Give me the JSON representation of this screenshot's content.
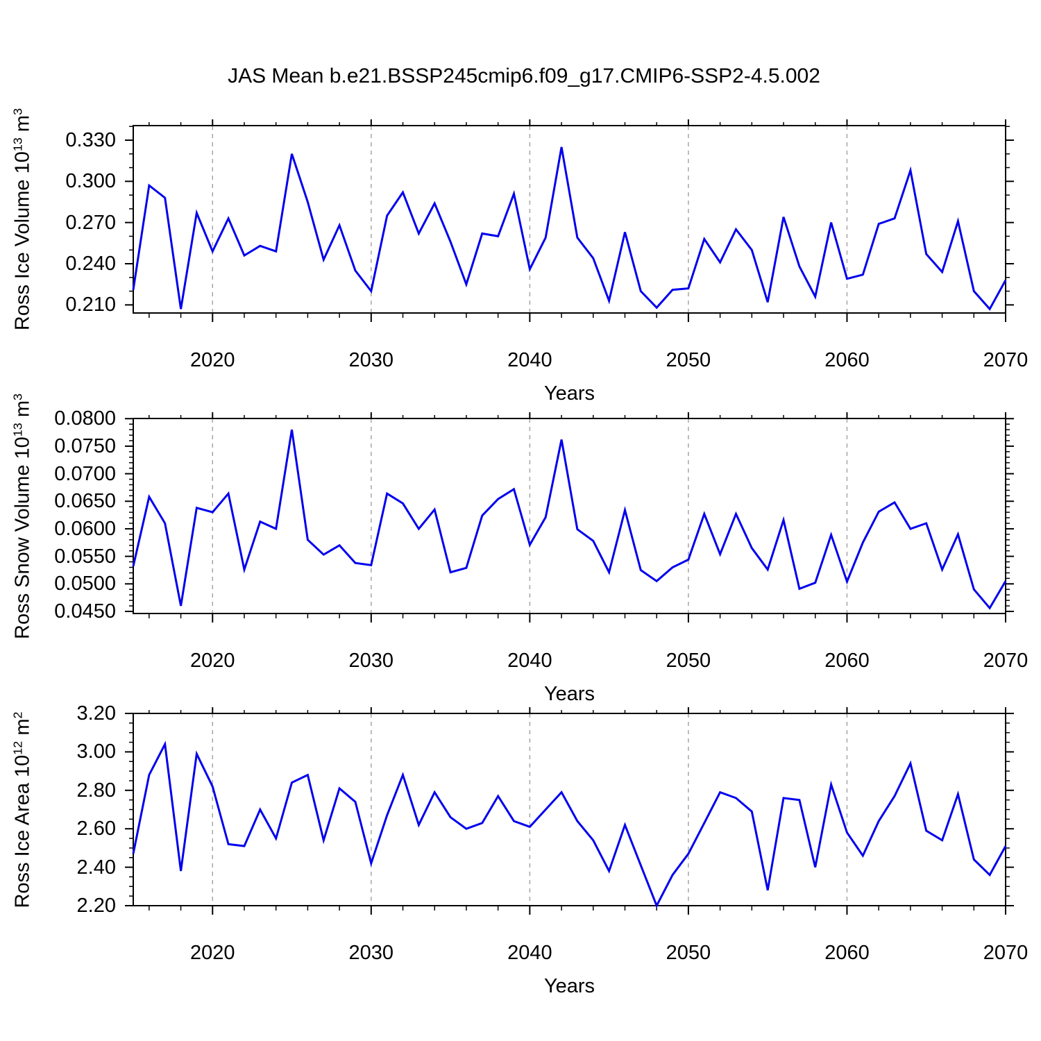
{
  "title": "JAS Mean b.e21.BSSP245cmip6.f09_g17.CMIP6-SSP2-4.5.002",
  "colors": {
    "line": "#0000ee",
    "frame": "#000000",
    "grid": "#a6a6a6",
    "background": "#ffffff"
  },
  "chart_data": [
    {
      "type": "line",
      "panel": 1,
      "ylabel_plain": "Ross Ice Volume 10^13 m^3",
      "ylabel_parts": {
        "pre": "Ross Ice Volume 10",
        "sup": "13",
        "mid": " m",
        "sup2": "3"
      },
      "xlabel": "Years",
      "x0": 2015,
      "x1": 2070,
      "x_step": 1,
      "values": [
        0.221,
        0.297,
        0.288,
        0.207,
        0.277,
        0.249,
        0.273,
        0.246,
        0.253,
        0.249,
        0.32,
        0.285,
        0.243,
        0.268,
        0.235,
        0.22,
        0.275,
        0.292,
        0.262,
        0.284,
        0.256,
        0.225,
        0.262,
        0.26,
        0.291,
        0.236,
        0.259,
        0.325,
        0.259,
        0.244,
        0.213,
        0.263,
        0.22,
        0.208,
        0.221,
        0.222,
        0.258,
        0.241,
        0.265,
        0.25,
        0.212,
        0.274,
        0.238,
        0.216,
        0.27,
        0.229,
        0.232,
        0.269,
        0.273,
        0.308,
        0.247,
        0.234,
        0.271,
        0.22,
        0.207,
        0.228
      ],
      "ylim": [
        0.2041,
        0.3406
      ],
      "ytick_values": [
        0.33,
        0.3,
        0.27,
        0.24,
        0.21
      ],
      "ytick_labels": [
        "0.330",
        "0.300",
        "0.270",
        "0.240",
        "0.210"
      ],
      "yminor_step": 0.01,
      "xtick_values": [
        2020,
        2030,
        2040,
        2050,
        2060,
        2070
      ],
      "xtick_labels": [
        "2020",
        "2030",
        "2040",
        "2050",
        "2060",
        "2070"
      ],
      "xminor_step": 2,
      "grid_years": [
        2020,
        2030,
        2040,
        2050,
        2060
      ]
    },
    {
      "type": "line",
      "panel": 2,
      "ylabel_plain": "Ross Snow Volume 10^13 m^3",
      "ylabel_parts": {
        "pre": "Ross Snow Volume 10",
        "sup": "13",
        "mid": " m",
        "sup2": "3"
      },
      "xlabel": "Years",
      "x0": 2015,
      "x1": 2070,
      "x_step": 1,
      "values": [
        0.0532,
        0.0658,
        0.061,
        0.046,
        0.0638,
        0.063,
        0.0664,
        0.0526,
        0.0613,
        0.06,
        0.078,
        0.058,
        0.0553,
        0.057,
        0.0538,
        0.0534,
        0.0664,
        0.0646,
        0.06,
        0.0635,
        0.0521,
        0.0529,
        0.0624,
        0.0654,
        0.0672,
        0.0571,
        0.0621,
        0.0762,
        0.0599,
        0.0578,
        0.0521,
        0.0634,
        0.0525,
        0.0505,
        0.053,
        0.0544,
        0.0627,
        0.0554,
        0.0627,
        0.0565,
        0.0526,
        0.0616,
        0.0491,
        0.0502,
        0.0589,
        0.0504,
        0.0575,
        0.0631,
        0.0648,
        0.06,
        0.061,
        0.0526,
        0.059,
        0.049,
        0.0456,
        0.0505
      ],
      "ylim": [
        0.04462,
        0.08003
      ],
      "ytick_values": [
        0.08,
        0.075,
        0.07,
        0.065,
        0.06,
        0.055,
        0.05,
        0.045
      ],
      "ytick_labels": [
        "0.0800",
        "0.0750",
        "0.0700",
        "0.0650",
        "0.0600",
        "0.0550",
        "0.0500",
        "0.0450"
      ],
      "yminor_step": 0.001,
      "xtick_values": [
        2020,
        2030,
        2040,
        2050,
        2060,
        2070
      ],
      "xtick_labels": [
        "2020",
        "2030",
        "2040",
        "2050",
        "2060",
        "2070"
      ],
      "xminor_step": 2,
      "grid_years": [
        2020,
        2030,
        2040,
        2050,
        2060
      ]
    },
    {
      "type": "line",
      "panel": 3,
      "ylabel_plain": "Ross Ice Area 10^12 m^2",
      "ylabel_parts": {
        "pre": "Ross Ice Area 10",
        "sup": "12",
        "mid": " m",
        "sup2": "2"
      },
      "xlabel": "Years",
      "x0": 2015,
      "x1": 2070,
      "x_step": 1,
      "values": [
        2.47,
        2.88,
        3.04,
        2.38,
        2.99,
        2.82,
        2.52,
        2.51,
        2.7,
        2.55,
        2.84,
        2.88,
        2.54,
        2.81,
        2.74,
        2.42,
        2.67,
        2.88,
        2.62,
        2.79,
        2.66,
        2.6,
        2.63,
        2.77,
        2.64,
        2.61,
        2.7,
        2.79,
        2.64,
        2.54,
        2.38,
        2.62,
        2.41,
        2.2,
        2.36,
        2.47,
        2.63,
        2.79,
        2.76,
        2.69,
        2.28,
        2.76,
        2.75,
        2.4,
        2.83,
        2.58,
        2.46,
        2.64,
        2.77,
        2.94,
        2.59,
        2.54,
        2.78,
        2.44,
        2.36,
        2.51
      ],
      "ylim": [
        2.2,
        3.2
      ],
      "ytick_values": [
        3.2,
        3.0,
        2.8,
        2.6,
        2.4,
        2.2
      ],
      "ytick_labels": [
        "3.20",
        "3.00",
        "2.80",
        "2.60",
        "2.40",
        "2.20"
      ],
      "yminor_step": 0.05,
      "xtick_values": [
        2020,
        2030,
        2040,
        2050,
        2060,
        2070
      ],
      "xtick_labels": [
        "2020",
        "2030",
        "2040",
        "2050",
        "2060",
        "2070"
      ],
      "xminor_step": 2,
      "grid_years": [
        2020,
        2030,
        2040,
        2050,
        2060
      ]
    }
  ]
}
